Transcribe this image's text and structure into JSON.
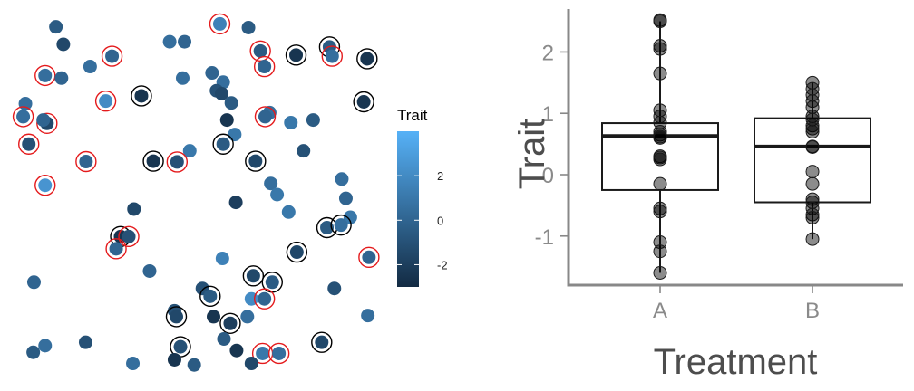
{
  "colors": {
    "low": "#132b43",
    "high": "#56b1f7",
    "ring_red": "#e41a1c",
    "ring_black": "#000000",
    "axis": "#888888"
  },
  "chart_data": [
    {
      "type": "scatter",
      "legend": {
        "title": "Trait",
        "ticks": [
          2,
          0,
          -2
        ],
        "range": [
          -3,
          4
        ],
        "placement": "right"
      },
      "xlim": [
        0,
        100
      ],
      "ylim": [
        0,
        100
      ],
      "points": [
        {
          "x": 12.6,
          "y": 95.2,
          "v": -0.5,
          "ring": ""
        },
        {
          "x": 14.6,
          "y": 90.5,
          "v": -1.5,
          "ring": ""
        },
        {
          "x": 9.7,
          "y": 82.1,
          "v": 0.5,
          "ring": "red"
        },
        {
          "x": 14.1,
          "y": 81.4,
          "v": 0.0,
          "ring": ""
        },
        {
          "x": 21.8,
          "y": 84.5,
          "v": 0.5,
          "ring": ""
        },
        {
          "x": 27.7,
          "y": 87.3,
          "v": 0.0,
          "ring": "red"
        },
        {
          "x": 4.4,
          "y": 74.5,
          "v": 0.5,
          "ring": ""
        },
        {
          "x": 3.8,
          "y": 71.0,
          "v": 0.5,
          "ring": "red"
        },
        {
          "x": 10.2,
          "y": 69.2,
          "v": -1.5,
          "ring": "red"
        },
        {
          "x": 9.2,
          "y": 70.1,
          "v": 0.0,
          "ring": ""
        },
        {
          "x": 5.3,
          "y": 63.6,
          "v": -1.0,
          "ring": "red"
        },
        {
          "x": 20.7,
          "y": 58.9,
          "v": 0.0,
          "ring": "red"
        },
        {
          "x": 9.7,
          "y": 52.5,
          "v": 2.5,
          "ring": "red"
        },
        {
          "x": 26.0,
          "y": 75.2,
          "v": 2.0,
          "ring": "red"
        },
        {
          "x": 35.6,
          "y": 76.6,
          "v": -2.5,
          "ring": "black"
        },
        {
          "x": 43.2,
          "y": 91.2,
          "v": 0.5,
          "ring": ""
        },
        {
          "x": 47.2,
          "y": 91.2,
          "v": 0.0,
          "ring": ""
        },
        {
          "x": 56.7,
          "y": 96.0,
          "v": 1.5,
          "ring": "red"
        },
        {
          "x": 64.4,
          "y": 95.0,
          "v": -0.5,
          "ring": ""
        },
        {
          "x": 67.6,
          "y": 88.7,
          "v": -0.5,
          "ring": "red"
        },
        {
          "x": 68.7,
          "y": 84.5,
          "v": 0.0,
          "ring": "red"
        },
        {
          "x": 77.2,
          "y": 87.6,
          "v": -2.5,
          "ring": "black"
        },
        {
          "x": 86.2,
          "y": 89.8,
          "v": -0.5,
          "ring": "black"
        },
        {
          "x": 86.9,
          "y": 87.3,
          "v": 0.5,
          "ring": "red"
        },
        {
          "x": 96.3,
          "y": 86.6,
          "v": -2.5,
          "ring": "black"
        },
        {
          "x": 46.7,
          "y": 81.4,
          "v": 0.5,
          "ring": ""
        },
        {
          "x": 54.6,
          "y": 82.8,
          "v": 0.0,
          "ring": ""
        },
        {
          "x": 57.6,
          "y": 80.3,
          "v": 0.5,
          "ring": ""
        },
        {
          "x": 55.8,
          "y": 78.0,
          "v": -1.0,
          "ring": ""
        },
        {
          "x": 57.2,
          "y": 77.2,
          "v": -1.5,
          "ring": ""
        },
        {
          "x": 59.8,
          "y": 74.7,
          "v": -0.5,
          "ring": ""
        },
        {
          "x": 95.4,
          "y": 75.0,
          "v": -2.5,
          "ring": "black"
        },
        {
          "x": 70.1,
          "y": 72.1,
          "v": 0.5,
          "ring": ""
        },
        {
          "x": 68.9,
          "y": 71.0,
          "v": 0.0,
          "ring": "red"
        },
        {
          "x": 75.8,
          "y": 69.4,
          "v": 1.0,
          "ring": ""
        },
        {
          "x": 58.6,
          "y": 70.1,
          "v": -2.5,
          "ring": ""
        },
        {
          "x": 81.8,
          "y": 70.1,
          "v": -0.5,
          "ring": ""
        },
        {
          "x": 60.7,
          "y": 66.2,
          "v": 1.0,
          "ring": ""
        },
        {
          "x": 57.6,
          "y": 63.6,
          "v": -0.5,
          "ring": "black"
        },
        {
          "x": 48.6,
          "y": 61.8,
          "v": 1.0,
          "ring": ""
        },
        {
          "x": 38.8,
          "y": 59.0,
          "v": -2.5,
          "ring": "black"
        },
        {
          "x": 45.2,
          "y": 58.8,
          "v": -1.0,
          "ring": "red"
        },
        {
          "x": 66.3,
          "y": 59.0,
          "v": -1.5,
          "ring": "black"
        },
        {
          "x": 79.2,
          "y": 61.8,
          "v": -1.0,
          "ring": ""
        },
        {
          "x": 89.5,
          "y": 54.2,
          "v": 0.5,
          "ring": ""
        },
        {
          "x": 70.4,
          "y": 53.0,
          "v": 0.5,
          "ring": ""
        },
        {
          "x": 72.1,
          "y": 50.0,
          "v": 1.0,
          "ring": ""
        },
        {
          "x": 90.6,
          "y": 49.0,
          "v": 0.0,
          "ring": ""
        },
        {
          "x": 61.0,
          "y": 47.9,
          "v": -2.0,
          "ring": ""
        },
        {
          "x": 33.6,
          "y": 46.1,
          "v": -1.5,
          "ring": ""
        },
        {
          "x": 75.2,
          "y": 45.3,
          "v": 1.0,
          "ring": ""
        },
        {
          "x": 91.8,
          "y": 43.9,
          "v": 1.0,
          "ring": ""
        },
        {
          "x": 85.5,
          "y": 41.1,
          "v": -0.5,
          "ring": "black"
        },
        {
          "x": 89.3,
          "y": 41.8,
          "v": 0.5,
          "ring": "black"
        },
        {
          "x": 30.0,
          "y": 38.7,
          "v": -2.5,
          "ring": "black"
        },
        {
          "x": 32.2,
          "y": 38.7,
          "v": -1.0,
          "ring": "red"
        },
        {
          "x": 28.8,
          "y": 35.4,
          "v": 0.0,
          "ring": "red"
        },
        {
          "x": 77.4,
          "y": 34.5,
          "v": -1.5,
          "ring": "black"
        },
        {
          "x": 57.4,
          "y": 32.8,
          "v": 1.5,
          "ring": ""
        },
        {
          "x": 96.8,
          "y": 33.1,
          "v": 0.0,
          "ring": "red"
        },
        {
          "x": 37.8,
          "y": 29.4,
          "v": 0.0,
          "ring": ""
        },
        {
          "x": 65.7,
          "y": 28.1,
          "v": -1.5,
          "ring": "black"
        },
        {
          "x": 70.8,
          "y": 26.4,
          "v": -0.5,
          "ring": "black"
        },
        {
          "x": 6.7,
          "y": 26.4,
          "v": 0.0,
          "ring": ""
        },
        {
          "x": 52.0,
          "y": 24.7,
          "v": -1.0,
          "ring": ""
        },
        {
          "x": 54.1,
          "y": 22.6,
          "v": -0.5,
          "ring": "black"
        },
        {
          "x": 65.2,
          "y": 21.9,
          "v": 2.0,
          "ring": ""
        },
        {
          "x": 68.7,
          "y": 21.9,
          "v": 0.0,
          "ring": "red"
        },
        {
          "x": 87.5,
          "y": 24.7,
          "v": -1.0,
          "ring": ""
        },
        {
          "x": 44.5,
          "y": 18.7,
          "v": -1.0,
          "ring": ""
        },
        {
          "x": 45.0,
          "y": 17.1,
          "v": -1.5,
          "ring": "black"
        },
        {
          "x": 55.0,
          "y": 17.1,
          "v": -2.5,
          "ring": ""
        },
        {
          "x": 59.5,
          "y": 15.3,
          "v": -2.0,
          "ring": "black"
        },
        {
          "x": 64.1,
          "y": 17.1,
          "v": 0.5,
          "ring": ""
        },
        {
          "x": 96.5,
          "y": 17.4,
          "v": 0.5,
          "ring": ""
        },
        {
          "x": 57.8,
          "y": 11.1,
          "v": -0.5,
          "ring": ""
        },
        {
          "x": 20.6,
          "y": 10.2,
          "v": -1.0,
          "ring": ""
        },
        {
          "x": 9.7,
          "y": 9.3,
          "v": 0.5,
          "ring": ""
        },
        {
          "x": 6.5,
          "y": 7.5,
          "v": -0.5,
          "ring": ""
        },
        {
          "x": 46.1,
          "y": 9.0,
          "v": -1.0,
          "ring": "black"
        },
        {
          "x": 61.2,
          "y": 8.0,
          "v": -2.5,
          "ring": ""
        },
        {
          "x": 84.1,
          "y": 10.2,
          "v": -1.5,
          "ring": "black"
        },
        {
          "x": 68.2,
          "y": 7.2,
          "v": 1.0,
          "ring": "red"
        },
        {
          "x": 72.6,
          "y": 7.2,
          "v": 0.5,
          "ring": "red"
        },
        {
          "x": 33.3,
          "y": 4.5,
          "v": 0.5,
          "ring": ""
        },
        {
          "x": 44.5,
          "y": 5.5,
          "v": -2.5,
          "ring": ""
        },
        {
          "x": 49.8,
          "y": 4.1,
          "v": -0.5,
          "ring": ""
        },
        {
          "x": 65.2,
          "y": 4.5,
          "v": -1.5,
          "ring": ""
        }
      ]
    },
    {
      "type": "box",
      "xlabel": "Treatment",
      "ylabel": "Trait",
      "categories": [
        "A",
        "B"
      ],
      "ylim": [
        -1.8,
        2.7
      ],
      "yticks": [
        2,
        1,
        0,
        -1
      ],
      "ytick_labels": [
        "2",
        "1",
        "0",
        "-1"
      ],
      "boxes": [
        {
          "name": "A",
          "q1": -0.25,
          "median": 0.63,
          "q3": 0.84,
          "whisker_low": -1.6,
          "whisker_high": 2.5
        },
        {
          "name": "B",
          "q1": -0.45,
          "median": 0.46,
          "q3": 0.92,
          "whisker_low": -1.05,
          "whisker_high": 1.5
        }
      ],
      "points": [
        {
          "name": "A",
          "values": [
            2.52,
            2.5,
            2.1,
            2.05,
            1.65,
            1.05,
            0.95,
            0.85,
            0.7,
            0.65,
            0.62,
            0.6,
            0.3,
            0.28,
            0.25,
            -0.15,
            -0.55,
            -0.6,
            -1.1,
            -1.25,
            -1.6
          ]
        },
        {
          "name": "B",
          "values": [
            1.5,
            1.4,
            1.3,
            1.2,
            1.1,
            0.95,
            0.9,
            0.8,
            0.75,
            0.7,
            0.46,
            0.45,
            0.05,
            -0.15,
            -0.4,
            -0.45,
            -0.55,
            -0.65,
            -0.7,
            -1.05
          ]
        }
      ]
    }
  ]
}
